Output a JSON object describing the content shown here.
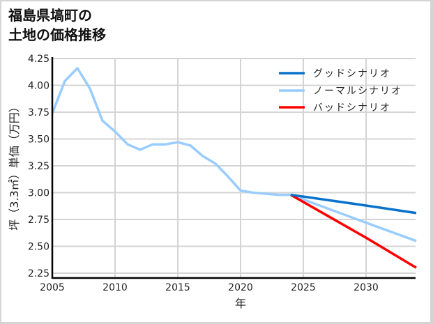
{
  "title": {
    "line1": "福島県塙町の",
    "line2": "土地の価格推移"
  },
  "colors": {
    "good": "#0a72cc",
    "normal": "#99ccff",
    "bad": "#ff0000",
    "grid": "#d4d4d4",
    "axis": "#000000"
  },
  "chart_data": {
    "type": "line",
    "title": "福島県塙町の土地の価格推移",
    "xlabel": "年",
    "ylabel": "坪（3.3㎡）単価（万円）",
    "xlim": [
      2005,
      2034
    ],
    "ylim": [
      2.25,
      4.25
    ],
    "xticks": [
      2005,
      2010,
      2015,
      2020,
      2025,
      2030
    ],
    "yticks": [
      2.25,
      2.5,
      2.75,
      3.0,
      3.25,
      3.5,
      3.75,
      4.0,
      4.25
    ],
    "ytick_labels": [
      "2.25",
      "2.50",
      "2.75",
      "3.00",
      "3.25",
      "3.50",
      "3.75",
      "4.00",
      "4.25"
    ],
    "grid": true,
    "legend_position": "upper right",
    "series": [
      {
        "name": "グッドシナリオ",
        "key": "good",
        "x": [
          2024,
          2030,
          2034
        ],
        "values": [
          2.98,
          2.88,
          2.81
        ]
      },
      {
        "name": "ノーマルシナリオ",
        "key": "normal",
        "x": [
          2005,
          2006,
          2007,
          2008,
          2009,
          2010,
          2011,
          2012,
          2013,
          2014,
          2015,
          2016,
          2017,
          2018,
          2019,
          2020,
          2021,
          2022,
          2023,
          2024,
          2030,
          2034
        ],
        "values": [
          3.74,
          4.04,
          4.16,
          3.97,
          3.67,
          3.57,
          3.45,
          3.4,
          3.45,
          3.45,
          3.47,
          3.44,
          3.34,
          3.27,
          3.15,
          3.02,
          3.0,
          2.99,
          2.98,
          2.98,
          2.72,
          2.55
        ]
      },
      {
        "name": "バッドシナリオ",
        "key": "bad",
        "x": [
          2024,
          2030,
          2034
        ],
        "values": [
          2.98,
          2.58,
          2.3
        ]
      }
    ]
  }
}
